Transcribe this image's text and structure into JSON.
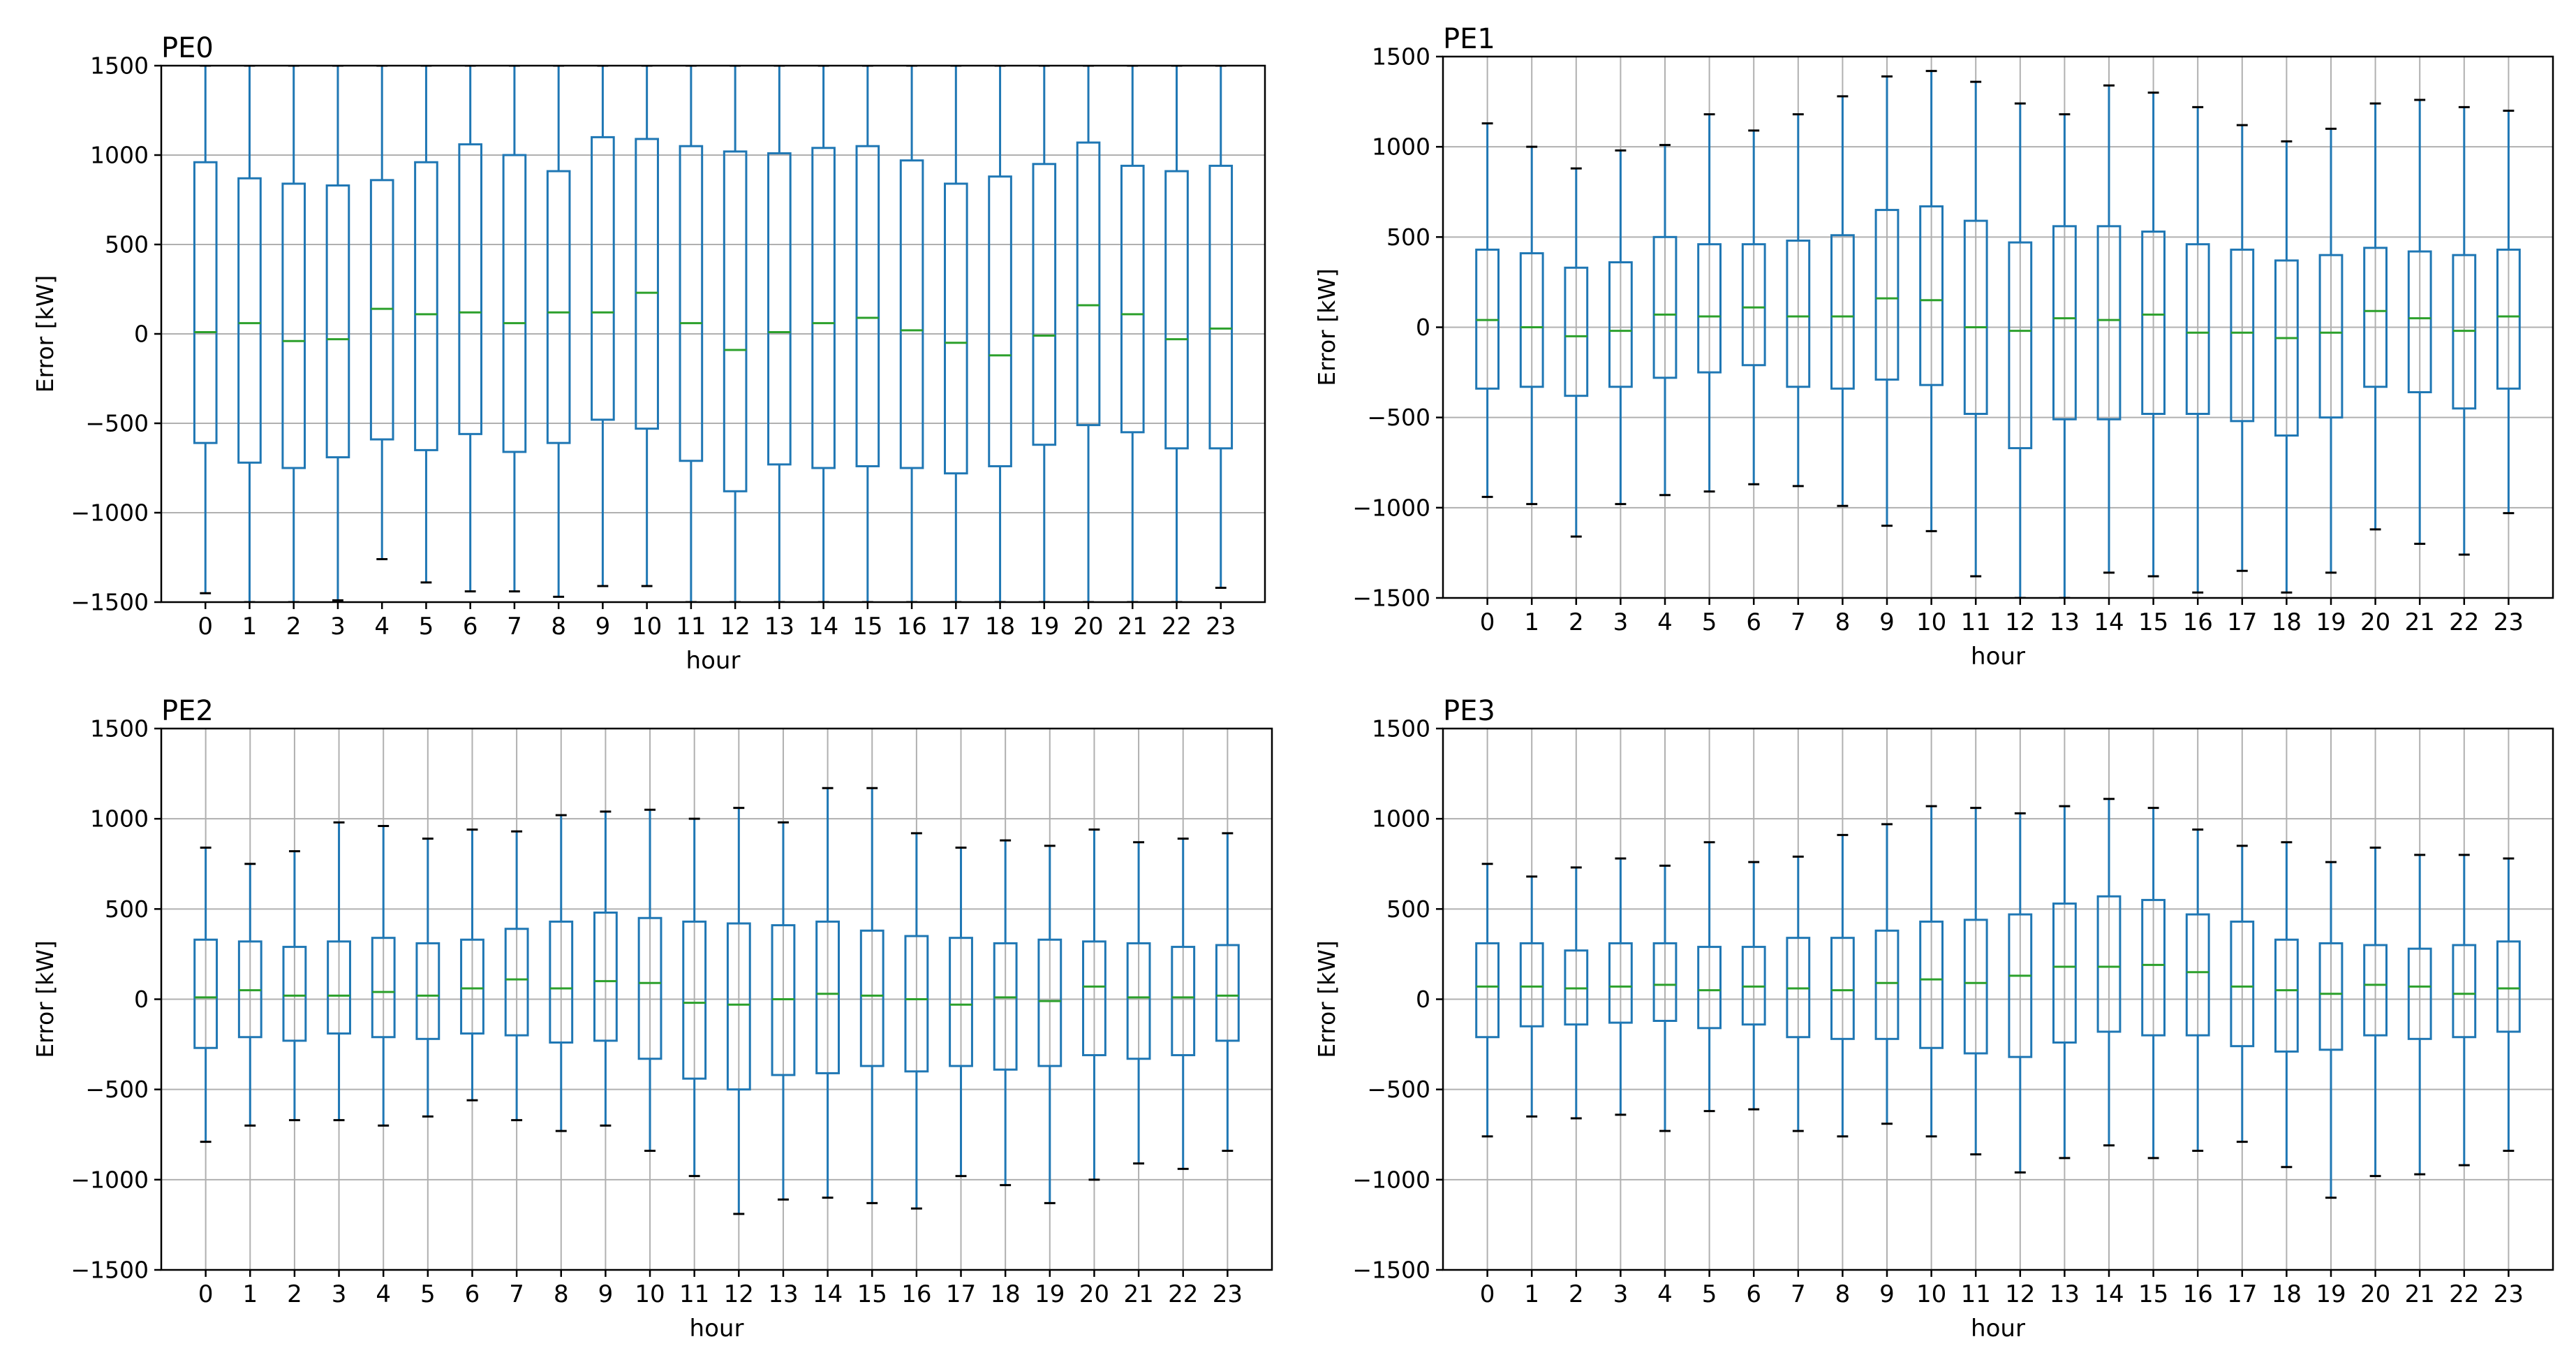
{
  "figure": {
    "colors": {
      "box": "#1f77b4",
      "median": "#2ca02c",
      "cap": "#000000",
      "grid": "#b0b0b0",
      "frame": "#000000",
      "text": "#000000"
    },
    "shared_xlabel": "hour",
    "shared_ylabel": "Error [kW]"
  },
  "chart_data": [
    {
      "type": "boxplot",
      "title": "PE0",
      "xlabel": "hour",
      "ylabel": "Error [kW]",
      "ylim": [
        -1500,
        1500
      ],
      "yticks": [
        -1500,
        -1000,
        -500,
        0,
        500,
        1000,
        1500
      ],
      "ytick_labels": [
        "−1500",
        "−1000",
        "−500",
        "0",
        "500",
        "1000",
        "1500"
      ],
      "categories": [
        "0",
        "1",
        "2",
        "3",
        "4",
        "5",
        "6",
        "7",
        "8",
        "9",
        "10",
        "11",
        "12",
        "13",
        "14",
        "15",
        "16",
        "17",
        "18",
        "19",
        "20",
        "21",
        "22",
        "23"
      ],
      "grid": "y",
      "q1": [
        -610,
        -720,
        -750,
        -690,
        -590,
        -650,
        -560,
        -660,
        -610,
        -480,
        -530,
        -710,
        -880,
        -730,
        -750,
        -740,
        -750,
        -780,
        -740,
        -620,
        -510,
        -550,
        -640,
        -640
      ],
      "median": [
        10,
        60,
        -40,
        -30,
        140,
        110,
        120,
        60,
        120,
        120,
        230,
        60,
        -90,
        10,
        60,
        90,
        20,
        -50,
        -120,
        -10,
        160,
        110,
        -30,
        30
      ],
      "q3": [
        960,
        870,
        840,
        830,
        860,
        960,
        1060,
        1000,
        910,
        1100,
        1090,
        1050,
        1020,
        1010,
        1040,
        1050,
        970,
        840,
        880,
        950,
        1070,
        940,
        910,
        940
      ],
      "whisker_low": [
        -1450,
        -1500,
        -1500,
        -1490,
        -1260,
        -1390,
        -1440,
        -1440,
        -1470,
        -1410,
        -1410,
        -1500,
        -1500,
        -1500,
        -1500,
        -1500,
        -1500,
        -1500,
        -1500,
        -1500,
        -1500,
        -1500,
        -1500,
        -1420
      ],
      "whisker_high": [
        1500,
        1500,
        1500,
        1500,
        1500,
        1500,
        1500,
        1500,
        1500,
        1500,
        1500,
        1500,
        1500,
        1500,
        1500,
        1500,
        1500,
        1500,
        1500,
        1500,
        1500,
        1500,
        1500,
        1500
      ]
    },
    {
      "type": "boxplot",
      "title": "PE1",
      "xlabel": "hour",
      "ylabel": "Error [kW]",
      "ylim": [
        -1500,
        1500
      ],
      "yticks": [
        -1500,
        -1000,
        -500,
        0,
        500,
        1000,
        1500
      ],
      "ytick_labels": [
        "−1500",
        "−1000",
        "−500",
        "0",
        "500",
        "1000",
        "1500"
      ],
      "categories": [
        "0",
        "1",
        "2",
        "3",
        "4",
        "5",
        "6",
        "7",
        "8",
        "9",
        "10",
        "11",
        "12",
        "13",
        "14",
        "15",
        "16",
        "17",
        "18",
        "19",
        "20",
        "21",
        "22",
        "23"
      ],
      "grid": "both",
      "q1": [
        -340,
        -330,
        -380,
        -330,
        -280,
        -250,
        -210,
        -330,
        -340,
        -290,
        -320,
        -480,
        -670,
        -510,
        -510,
        -480,
        -480,
        -520,
        -600,
        -500,
        -330,
        -360,
        -450,
        -340
      ],
      "median": [
        40,
        0,
        -50,
        -20,
        70,
        60,
        110,
        60,
        60,
        160,
        150,
        0,
        -20,
        50,
        40,
        70,
        -30,
        -30,
        -60,
        -30,
        90,
        50,
        -20,
        60
      ],
      "q3": [
        430,
        410,
        330,
        360,
        500,
        460,
        460,
        480,
        510,
        650,
        670,
        590,
        470,
        560,
        560,
        530,
        460,
        430,
        370,
        400,
        440,
        420,
        400,
        430
      ],
      "whisker_low": [
        -940,
        -980,
        -1160,
        -980,
        -930,
        -910,
        -870,
        -880,
        -990,
        -1100,
        -1130,
        -1380,
        -1500,
        -1500,
        -1360,
        -1380,
        -1470,
        -1350,
        -1470,
        -1360,
        -1120,
        -1200,
        -1260,
        -1030
      ],
      "whisker_high": [
        1130,
        1000,
        880,
        980,
        1010,
        1180,
        1090,
        1180,
        1280,
        1390,
        1420,
        1360,
        1240,
        1180,
        1340,
        1300,
        1220,
        1120,
        1030,
        1100,
        1240,
        1260,
        1220,
        1200
      ]
    },
    {
      "type": "boxplot",
      "title": "PE2",
      "xlabel": "hour",
      "ylabel": "Error [kW]",
      "ylim": [
        -1500,
        1500
      ],
      "yticks": [
        -1500,
        -1000,
        -500,
        0,
        500,
        1000,
        1500
      ],
      "ytick_labels": [
        "−1500",
        "−1000",
        "−500",
        "0",
        "500",
        "1000",
        "1500"
      ],
      "categories": [
        "0",
        "1",
        "2",
        "3",
        "4",
        "5",
        "6",
        "7",
        "8",
        "9",
        "10",
        "11",
        "12",
        "13",
        "14",
        "15",
        "16",
        "17",
        "18",
        "19",
        "20",
        "21",
        "22",
        "23"
      ],
      "grid": "both",
      "q1": [
        -270,
        -210,
        -230,
        -190,
        -210,
        -220,
        -190,
        -200,
        -240,
        -230,
        -330,
        -440,
        -500,
        -420,
        -410,
        -370,
        -400,
        -370,
        -390,
        -370,
        -310,
        -330,
        -310,
        -230
      ],
      "median": [
        10,
        50,
        20,
        20,
        40,
        20,
        60,
        110,
        60,
        100,
        90,
        -20,
        -30,
        0,
        30,
        20,
        0,
        -30,
        10,
        -10,
        70,
        10,
        10,
        20
      ],
      "q3": [
        330,
        320,
        290,
        320,
        340,
        310,
        330,
        390,
        430,
        480,
        450,
        430,
        420,
        410,
        430,
        380,
        350,
        340,
        310,
        330,
        320,
        310,
        290,
        300
      ],
      "whisker_low": [
        -790,
        -700,
        -670,
        -670,
        -700,
        -650,
        -560,
        -670,
        -730,
        -700,
        -840,
        -980,
        -1190,
        -1110,
        -1100,
        -1130,
        -1160,
        -980,
        -1030,
        -1130,
        -1000,
        -910,
        -940,
        -840
      ],
      "whisker_high": [
        840,
        750,
        820,
        980,
        960,
        890,
        940,
        930,
        1020,
        1040,
        1050,
        1000,
        1060,
        980,
        1170,
        1170,
        920,
        840,
        880,
        850,
        940,
        870,
        890,
        920
      ]
    },
    {
      "type": "boxplot",
      "title": "PE3",
      "xlabel": "hour",
      "ylabel": "Error [kW]",
      "ylim": [
        -1500,
        1500
      ],
      "yticks": [
        -1500,
        -1000,
        -500,
        0,
        500,
        1000,
        1500
      ],
      "ytick_labels": [
        "−1500",
        "−1000",
        "−500",
        "0",
        "500",
        "1000",
        "1500"
      ],
      "categories": [
        "0",
        "1",
        "2",
        "3",
        "4",
        "5",
        "6",
        "7",
        "8",
        "9",
        "10",
        "11",
        "12",
        "13",
        "14",
        "15",
        "16",
        "17",
        "18",
        "19",
        "20",
        "21",
        "22",
        "23"
      ],
      "grid": "both",
      "q1": [
        -210,
        -150,
        -140,
        -130,
        -120,
        -160,
        -140,
        -210,
        -220,
        -220,
        -270,
        -300,
        -320,
        -240,
        -180,
        -200,
        -200,
        -260,
        -290,
        -280,
        -200,
        -220,
        -210,
        -180
      ],
      "median": [
        70,
        70,
        60,
        70,
        80,
        50,
        70,
        60,
        50,
        90,
        110,
        90,
        130,
        180,
        180,
        190,
        150,
        70,
        50,
        30,
        80,
        70,
        30,
        60
      ],
      "q3": [
        310,
        310,
        270,
        310,
        310,
        290,
        290,
        340,
        340,
        380,
        430,
        440,
        470,
        530,
        570,
        550,
        470,
        430,
        330,
        310,
        300,
        280,
        300,
        320
      ],
      "whisker_low": [
        -760,
        -650,
        -660,
        -640,
        -730,
        -620,
        -610,
        -730,
        -760,
        -690,
        -760,
        -860,
        -960,
        -880,
        -810,
        -880,
        -840,
        -790,
        -930,
        -1100,
        -980,
        -970,
        -920,
        -840
      ],
      "whisker_high": [
        750,
        680,
        730,
        780,
        740,
        870,
        760,
        790,
        910,
        970,
        1070,
        1060,
        1030,
        1070,
        1110,
        1060,
        940,
        850,
        870,
        760,
        840,
        800,
        800,
        780
      ]
    }
  ]
}
